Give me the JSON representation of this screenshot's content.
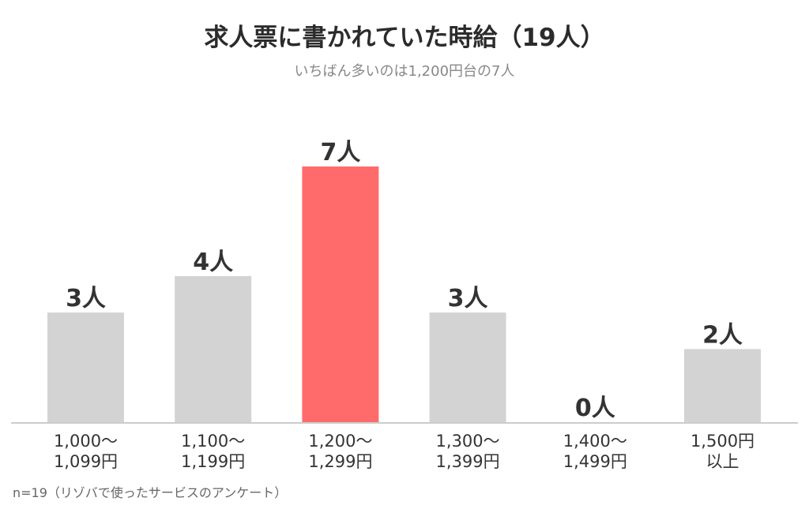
{
  "title": "求人票に書かれていた時給（19人）",
  "subtitle": "いちばん多いのは1,200円台の7人",
  "footnote": "n=19（リゾバで使ったサービスのアンケート）",
  "colors": {
    "bar": "#d3d3d3",
    "highlight": "#ff6b6b",
    "axis": "#cccccc",
    "text": "#333333"
  },
  "chart_data": {
    "type": "bar",
    "categories": [
      [
        "1,000〜",
        "1,099円"
      ],
      [
        "1,100〜",
        "1,199円"
      ],
      [
        "1,200〜",
        "1,299円"
      ],
      [
        "1,300〜",
        "1,399円"
      ],
      [
        "1,400〜",
        "1,499円"
      ],
      [
        "1,500円",
        "以上"
      ]
    ],
    "values": [
      3,
      4,
      7,
      3,
      0,
      2
    ],
    "data_labels": [
      "3人",
      "4人",
      "7人",
      "3人",
      "0人",
      "2人"
    ],
    "highlight_index": 2,
    "ylim": [
      0,
      7
    ],
    "grid": false,
    "legend": "none"
  }
}
